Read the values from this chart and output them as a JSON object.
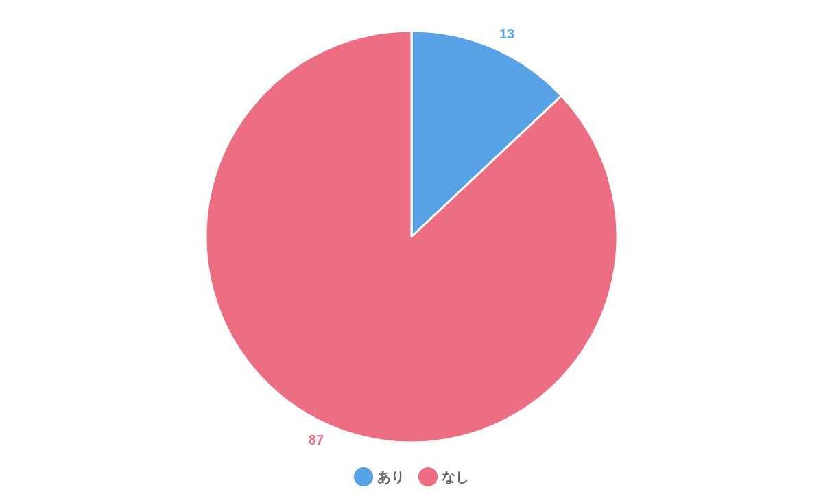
{
  "chart_data": {
    "type": "pie",
    "categories": [
      "あり",
      "なし"
    ],
    "values": [
      13,
      87
    ],
    "colors": [
      "#57a2e5",
      "#ed6d82"
    ],
    "data_labels": true,
    "legend": "bottom"
  }
}
